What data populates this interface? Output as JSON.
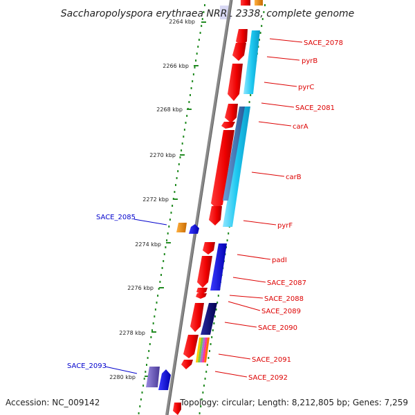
{
  "title": "Saccharopolyspora erythraea NRRL 2338, complete genome",
  "accession": "Accession: NC_009142",
  "topology": "Topology: circular; Length: 8,212,805 bp; Genes: 7,259",
  "colors": {
    "forward_gene": "#ee0000",
    "forward_gene_dark": "#990000",
    "label_red": "#dd0000",
    "label_blue": "#0000cc",
    "axis_grey": "#8a8a8a",
    "tick_green": "#228b22",
    "light_blue": "#1ec8f0",
    "blue": "#0000ee",
    "navy": "#00006e",
    "orange": "#f08c00",
    "purple": "#7060c0"
  },
  "ticks": [
    {
      "label": "2264 kbp"
    },
    {
      "label": "2266 kbp"
    },
    {
      "label": "2268 kbp"
    },
    {
      "label": "2270 kbp"
    },
    {
      "label": "2272 kbp"
    },
    {
      "label": "2274 kbp"
    },
    {
      "label": "2276 kbp"
    },
    {
      "label": "2278 kbp"
    },
    {
      "label": "2280 kbp"
    }
  ],
  "genes_right": [
    {
      "name": "SACE_2078"
    },
    {
      "name": "pyrB"
    },
    {
      "name": "pyrC"
    },
    {
      "name": "SACE_2081"
    },
    {
      "name": "carA"
    },
    {
      "name": "carB"
    },
    {
      "name": "pyrF"
    },
    {
      "name": "padI"
    },
    {
      "name": "SACE_2087"
    },
    {
      "name": "SACE_2088"
    },
    {
      "name": "SACE_2089"
    },
    {
      "name": "SACE_2090"
    },
    {
      "name": "SACE_2091"
    },
    {
      "name": "SACE_2092"
    }
  ],
  "genes_left": [
    {
      "name": "SACE_2085"
    },
    {
      "name": "SACE_2093"
    }
  ]
}
